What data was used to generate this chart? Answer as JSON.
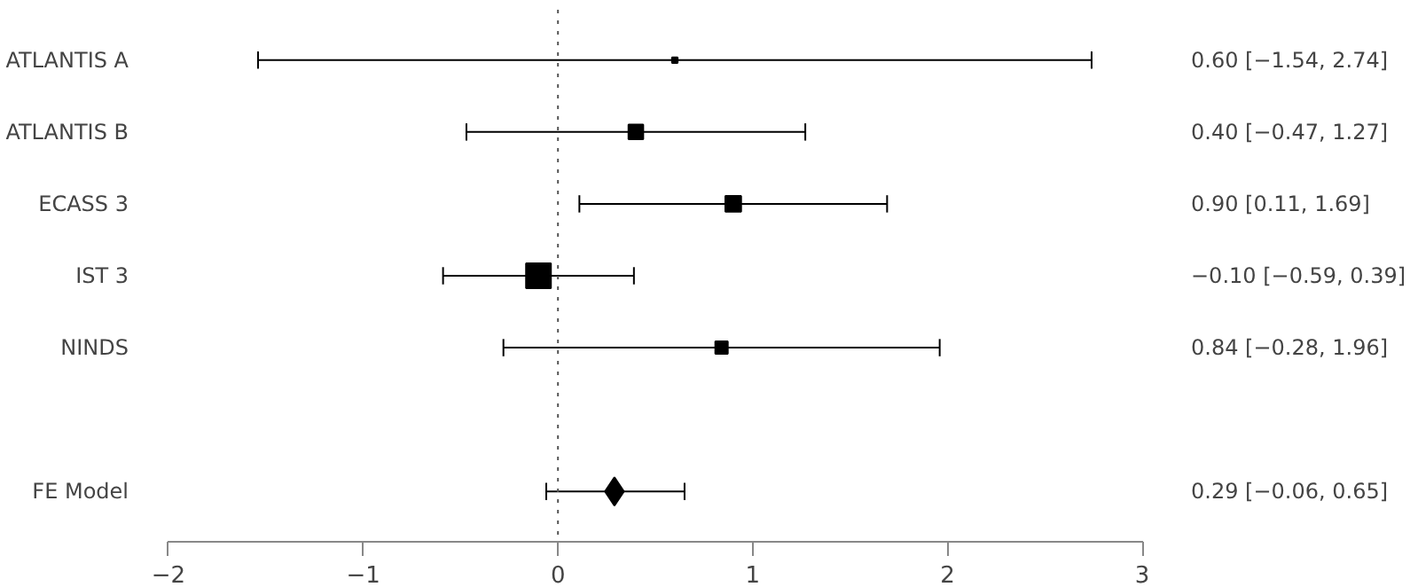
{
  "chart_data": {
    "type": "scatter",
    "orientation": "horizontal",
    "categories": [
      "ATLANTIS A",
      "ATLANTIS B",
      "ECASS 3",
      "IST 3",
      "NINDS",
      null,
      "FE Model"
    ],
    "series": [
      {
        "type": "bubble",
        "marker": "square",
        "color": "#000000",
        "values": [
          0.6,
          0.4,
          0.9,
          -0.1,
          0.84,
          null,
          null
        ],
        "errors": [
          [
            -1.54,
            2.74
          ],
          [
            -0.47,
            1.27
          ],
          [
            0.11,
            1.69
          ],
          [
            -0.59,
            0.39
          ],
          [
            -0.28,
            1.96
          ],
          null,
          null
        ],
        "sizes": [
          0.05,
          0.35,
          0.4,
          1,
          0.25,
          null,
          null
        ]
      },
      {
        "type": "scatter",
        "marker": "diamond",
        "color": "#000000",
        "values": [
          null,
          null,
          null,
          null,
          null,
          null,
          0.29
        ],
        "errors": [
          null,
          null,
          null,
          null,
          null,
          null,
          [
            -0.06,
            0.65
          ]
        ]
      }
    ],
    "value_labels": [
      "0.60 [−1.54, 2.74]",
      "0.40 [−0.47, 1.27]",
      "0.90 [0.11, 1.69]",
      "−0.10 [−0.59, 0.39]",
      "0.84 [−0.28, 1.96]",
      null,
      "0.29 [−0.06, 0.65]"
    ],
    "xlim": [
      -2,
      3
    ],
    "xticks": [
      {
        "value": -2,
        "label": "−2"
      },
      {
        "value": -1,
        "label": "−1"
      },
      0,
      1,
      2,
      3
    ],
    "ref_lines": [
      {
        "axis": "x",
        "value": 0,
        "line_style": "dotted",
        "color": "#555555"
      }
    ],
    "grid": false
  }
}
